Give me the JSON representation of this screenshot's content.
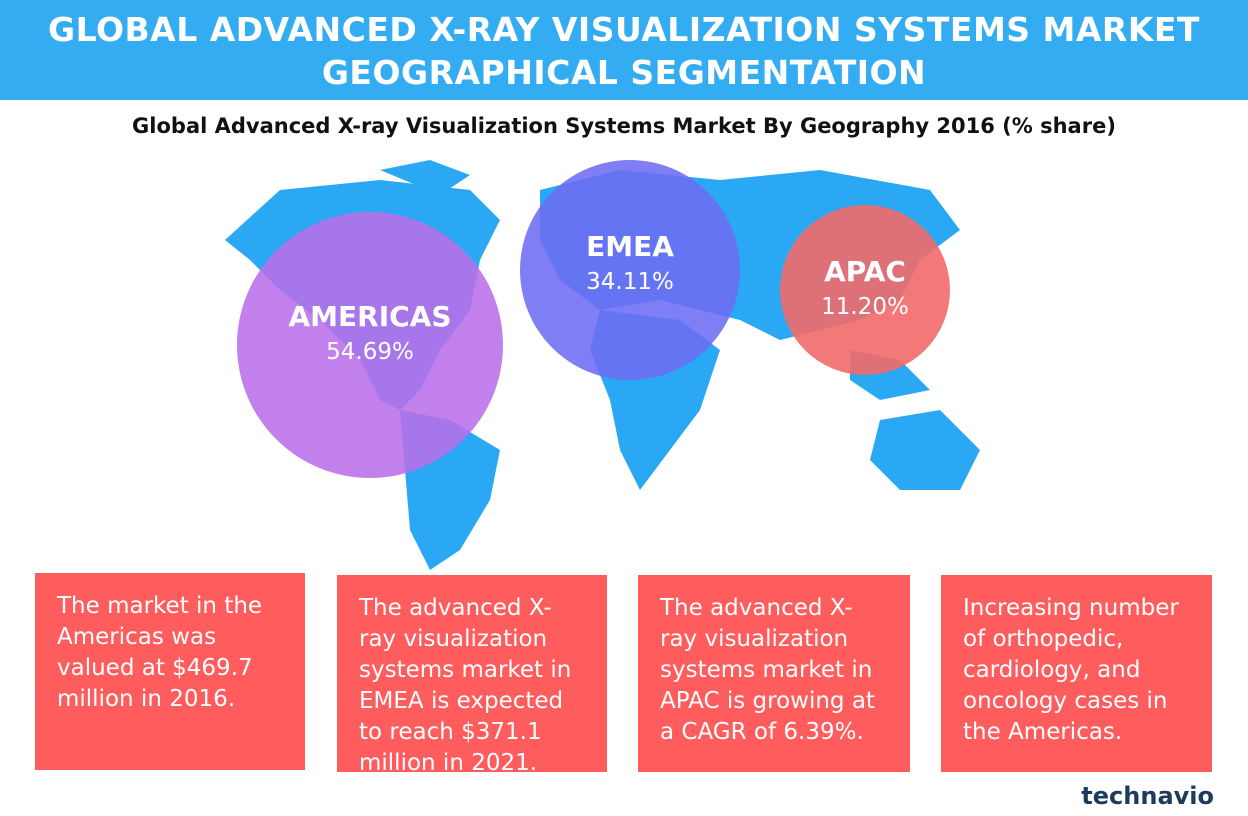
{
  "header": {
    "title_lines": [
      "GLOBAL ADVANCED X-RAY VISUALIZATION SYSTEMS MARKET",
      "GEOGRAPHICAL SEGMENTATION"
    ]
  },
  "subtitle": "Global Advanced X-ray Visualization Systems Market By Geography 2016 (% share)",
  "regions": [
    {
      "name": "AMERICAS",
      "share": "54.69%"
    },
    {
      "name": "EMEA",
      "share": "34.11%"
    },
    {
      "name": "APAC",
      "share": "11.20%"
    }
  ],
  "boxes": [
    "The market in the Americas was valued at $469.7 million in 2016.",
    "The advanced X-ray visualization systems market in EMEA is expected to reach $371.1 million in 2021.",
    "The advanced X-ray visualization systems market in APAC is growing at a CAGR of 6.39%.",
    "Increasing number of orthopedic, cardiology, and oncology cases in the Americas."
  ],
  "logo": "technavio"
}
